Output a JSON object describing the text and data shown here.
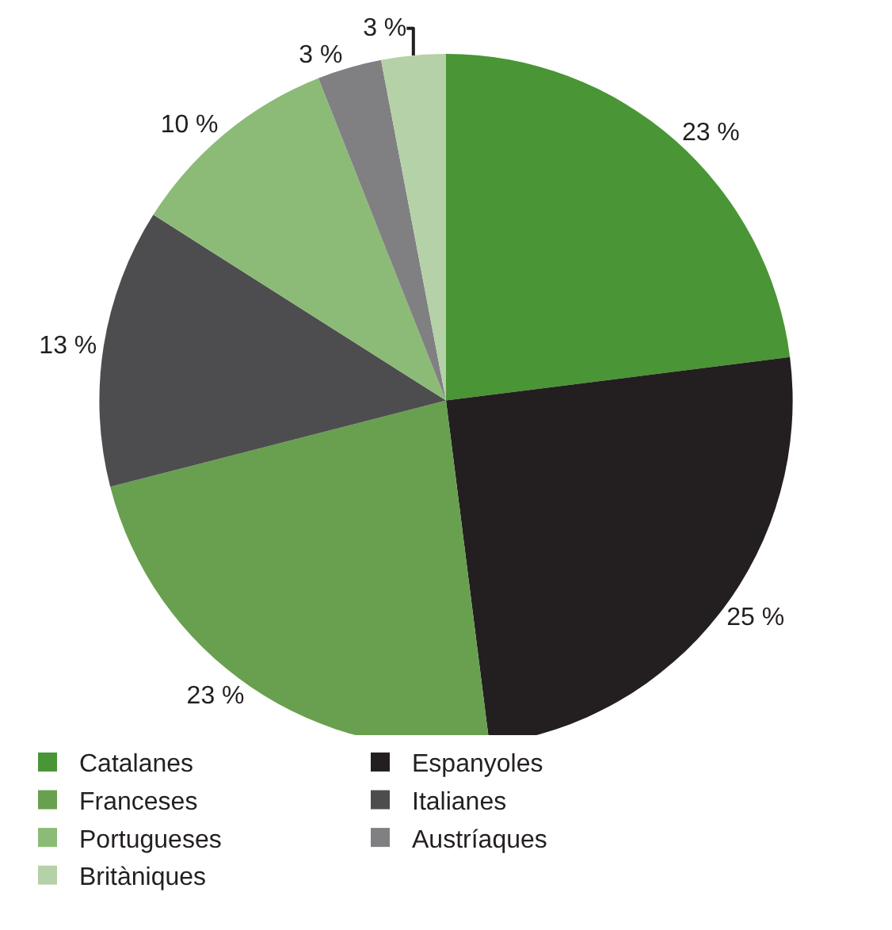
{
  "chart_data": {
    "type": "pie",
    "categories": [
      "Catalanes",
      "Espanyoles",
      "Franceses",
      "Italianes",
      "Portugueses",
      "Austríaques",
      "Britàniques"
    ],
    "values": [
      23,
      25,
      23,
      13,
      10,
      3,
      3
    ],
    "colors": [
      "#4a9535",
      "#231f20",
      "#68a04f",
      "#4d4d4f",
      "#8cba77",
      "#808083",
      "#b5d1a7"
    ],
    "value_labels": [
      "23 %",
      "25 %",
      "23 %",
      "13 %",
      "10 %",
      "3 %",
      "3 %"
    ],
    "legend": "bottom"
  }
}
